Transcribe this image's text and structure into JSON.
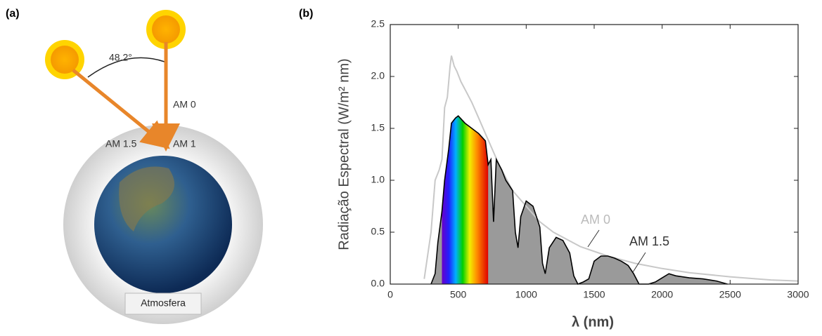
{
  "diagram": {
    "panel_label": "(a)",
    "angle_label": "48.2°",
    "am0_label": "AM 0",
    "am15_label": "AM 1.5",
    "am1_label": "AM 1",
    "atmosphere_label": "Atmosfera"
  },
  "chart_data": {
    "type": "line",
    "panel_label": "(b)",
    "x_label": "λ (nm)",
    "y_label": "Radiação Espectral (W/m² nm)",
    "xlim": [
      0,
      3000
    ],
    "xticks": [
      0,
      500,
      1000,
      1500,
      2000,
      2500,
      3000
    ],
    "ylim": [
      0,
      2.5
    ],
    "yticks": [
      {
        "value": 0,
        "label": "0.0"
      },
      0.5,
      {
        "value": 1,
        "label": "1.0"
      },
      1.5,
      {
        "value": 2,
        "label": "2.0"
      },
      2.5
    ],
    "highlight_xlim": [
      380,
      720
    ],
    "annotations": [
      "AM 0",
      "AM 1.5"
    ],
    "series": [
      {
        "name": "AM 0",
        "color": "#c8c8c8",
        "x": [
          250,
          300,
          330,
          360,
          380,
          400,
          420,
          440,
          450,
          470,
          490,
          520,
          560,
          600,
          650,
          700,
          800,
          900,
          1000,
          1100,
          1200,
          1400,
          1600,
          1800,
          2000,
          2200,
          2500,
          2800,
          3000
        ],
        "values": [
          0.05,
          0.5,
          1.0,
          1.1,
          1.2,
          1.7,
          1.8,
          2.1,
          2.2,
          2.1,
          2.05,
          1.95,
          1.85,
          1.75,
          1.6,
          1.45,
          1.15,
          0.9,
          0.75,
          0.6,
          0.5,
          0.36,
          0.27,
          0.2,
          0.15,
          0.11,
          0.07,
          0.04,
          0.03
        ]
      },
      {
        "name": "AM 1.5",
        "color": "#000000",
        "fill": "#9a9a9a",
        "x": [
          300,
          330,
          350,
          380,
          400,
          430,
          450,
          480,
          500,
          550,
          600,
          650,
          700,
          720,
          740,
          760,
          780,
          820,
          850,
          900,
          920,
          940,
          960,
          1000,
          1050,
          1100,
          1120,
          1140,
          1170,
          1220,
          1270,
          1320,
          1350,
          1380,
          1420,
          1460,
          1500,
          1550,
          1600,
          1650,
          1700,
          1750,
          1790,
          1830,
          1900,
          1950,
          2000,
          2050,
          2100,
          2200,
          2300,
          2400,
          2480
        ],
        "values": [
          0,
          0.1,
          0.4,
          0.7,
          1.0,
          1.3,
          1.55,
          1.6,
          1.62,
          1.55,
          1.5,
          1.45,
          1.38,
          1.15,
          1.2,
          0.6,
          1.2,
          1.1,
          1.0,
          0.9,
          0.5,
          0.35,
          0.65,
          0.8,
          0.75,
          0.55,
          0.2,
          0.1,
          0.35,
          0.45,
          0.42,
          0.3,
          0.08,
          0.0,
          0.02,
          0.05,
          0.22,
          0.27,
          0.27,
          0.25,
          0.22,
          0.18,
          0.1,
          0.0,
          0.0,
          0.02,
          0.06,
          0.1,
          0.08,
          0.06,
          0.05,
          0.03,
          0.0
        ]
      }
    ]
  }
}
